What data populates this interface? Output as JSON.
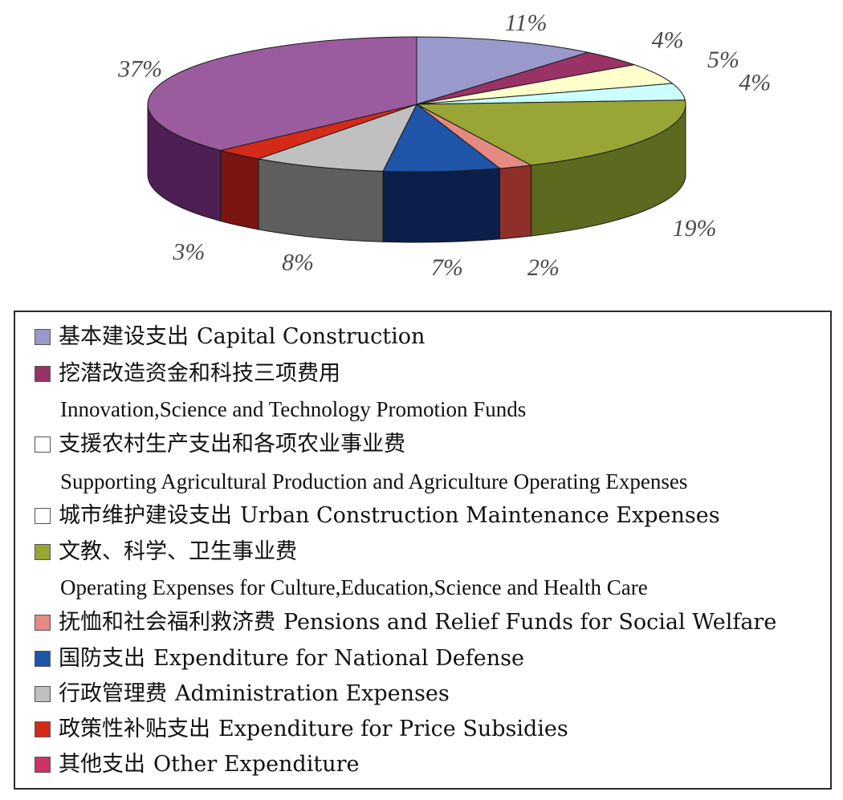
{
  "chart_data": {
    "type": "pie",
    "style": "3d",
    "slices": [
      {
        "zh": "基本建设支出",
        "en": "Capital Construction",
        "value": 11,
        "label": "11%",
        "color": "#9999cc",
        "side": "#6b6b99"
      },
      {
        "zh": "挖潜改造资金和科技三项费用",
        "en": "Innovation,Science and Technology Promotion Funds",
        "value": 4,
        "label": "4%",
        "color": "#993366",
        "side": "#6b2347"
      },
      {
        "zh": "支援农村生产支出和各项农业事业费",
        "en": "Supporting Agricultural Production and Agriculture Operating Expenses",
        "value": 5,
        "label": "5%",
        "color": "#ffffcc",
        "side": "#c8c89a"
      },
      {
        "zh": "城市维护建设支出",
        "en": "Urban Construction Maintenance Expenses",
        "value": 4,
        "label": "4%",
        "color": "#ccffff",
        "side": "#99c4c4"
      },
      {
        "zh": "文教、科学、卫生事业费",
        "en": "Operating Expenses for Culture,Education,Science and Health Care",
        "value": 19,
        "label": "19%",
        "color": "#99a535",
        "side": "#5c6a1f"
      },
      {
        "zh": "抚恤和社会福利救济费",
        "en": "Pensions and Relief Funds for Social Welfare",
        "value": 2,
        "label": "2%",
        "color": "#e58a80",
        "side": "#8e2f2a"
      },
      {
        "zh": "国防支出",
        "en": "Expenditure for National Defense",
        "value": 7,
        "label": "7%",
        "color": "#1f55a8",
        "side": "#0b1f4a"
      },
      {
        "zh": "行政管理费",
        "en": "Administration Expenses",
        "value": 8,
        "label": "8%",
        "color": "#c0c0c0",
        "side": "#5e5e5e"
      },
      {
        "zh": "政策性补贴支出",
        "en": "Expenditure for Price Subsidies",
        "value": 3,
        "label": "3%",
        "color": "#d42a1a",
        "side": "#7a1410"
      },
      {
        "zh": "其他支出",
        "en": "Other Expenditure",
        "value": 37,
        "label": "37%",
        "color": "#9a5c9e",
        "side": "#4e1f55"
      }
    ],
    "legend_placement": "bottom",
    "legend_swatch_colors": [
      "#9999cc",
      "#993366",
      "#ffffff",
      "#ffffff",
      "#99a535",
      "#e58a80",
      "#1f55a8",
      "#c0c0c0",
      "#d42a1a",
      "#cc3366"
    ]
  }
}
